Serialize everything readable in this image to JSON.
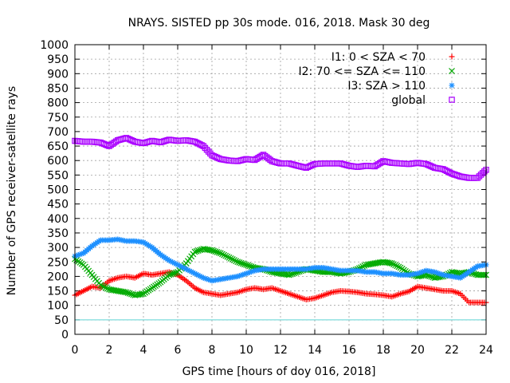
{
  "chart_data": {
    "type": "scatter",
    "title": "NRAYS. SISTED pp 30s mode. 016, 2018. Mask 30 deg",
    "xlabel": "GPS time [hours of doy 016, 2018]",
    "ylabel": "Number of GPS receiver-satellite rays",
    "xlim": [
      0,
      24
    ],
    "ylim": [
      0,
      1000
    ],
    "xticks": [
      0,
      2,
      4,
      6,
      8,
      10,
      12,
      14,
      16,
      18,
      20,
      22,
      24
    ],
    "yticks": [
      0,
      50,
      100,
      150,
      200,
      250,
      300,
      350,
      400,
      450,
      500,
      550,
      600,
      650,
      700,
      750,
      800,
      850,
      900,
      950,
      1000
    ],
    "grid": true,
    "legend_position": "top-right",
    "reference_line": {
      "y": 50,
      "color": "#5fd3d3"
    },
    "series": [
      {
        "name": "I1: 0 < SZA < 70",
        "marker": "plus",
        "color": "#ff0000",
        "x": [
          0,
          0.5,
          1,
          1.5,
          2,
          2.5,
          3,
          3.5,
          4,
          4.5,
          5,
          5.5,
          6,
          6.5,
          7,
          7.5,
          8,
          8.5,
          9,
          9.5,
          10,
          10.5,
          11,
          11.5,
          12,
          12.5,
          13,
          13.5,
          14,
          14.5,
          15,
          15.5,
          16,
          16.5,
          17,
          17.5,
          18,
          18.5,
          19,
          19.5,
          20,
          20.5,
          21,
          21.5,
          22,
          22.5,
          23,
          23.5,
          24
        ],
        "y": [
          135,
          150,
          165,
          160,
          185,
          195,
          200,
          195,
          210,
          205,
          210,
          215,
          205,
          185,
          160,
          145,
          140,
          135,
          140,
          145,
          155,
          160,
          155,
          160,
          150,
          140,
          130,
          120,
          125,
          135,
          145,
          150,
          148,
          145,
          140,
          138,
          135,
          130,
          140,
          148,
          165,
          160,
          155,
          150,
          150,
          140,
          110,
          110,
          110
        ]
      },
      {
        "name": "I2: 70 <= SZA <= 110",
        "marker": "cross",
        "color": "#00aa00",
        "x": [
          0,
          0.5,
          1,
          1.5,
          2,
          2.5,
          3,
          3.5,
          4,
          4.5,
          5,
          5.5,
          6,
          6.5,
          7,
          7.5,
          8,
          8.5,
          9,
          9.5,
          10,
          10.5,
          11,
          11.5,
          12,
          12.5,
          13,
          13.5,
          14,
          14.5,
          15,
          15.5,
          16,
          16.5,
          17,
          17.5,
          18,
          18.5,
          19,
          19.5,
          20,
          20.5,
          21,
          21.5,
          22,
          22.5,
          23,
          23.5,
          24
        ],
        "y": [
          260,
          240,
          205,
          170,
          155,
          150,
          145,
          135,
          140,
          160,
          180,
          205,
          215,
          245,
          285,
          295,
          290,
          280,
          265,
          250,
          240,
          230,
          225,
          215,
          210,
          205,
          215,
          225,
          220,
          215,
          215,
          210,
          215,
          225,
          240,
          245,
          250,
          245,
          230,
          210,
          200,
          205,
          195,
          200,
          215,
          210,
          215,
          205,
          205
        ]
      },
      {
        "name": "I3: SZA > 110",
        "marker": "star",
        "color": "#1e90ff",
        "x": [
          0,
          0.5,
          1,
          1.5,
          2,
          2.5,
          3,
          3.5,
          4,
          4.5,
          5,
          5.5,
          6,
          6.5,
          7,
          7.5,
          8,
          8.5,
          9,
          9.5,
          10,
          10.5,
          11,
          11.5,
          12,
          12.5,
          13,
          13.5,
          14,
          14.5,
          15,
          15.5,
          16,
          16.5,
          17,
          17.5,
          18,
          18.5,
          19,
          19.5,
          20,
          20.5,
          21,
          21.5,
          22,
          22.5,
          23,
          23.5,
          24
        ],
        "y": [
          270,
          280,
          305,
          325,
          325,
          328,
          322,
          322,
          318,
          300,
          275,
          255,
          240,
          225,
          210,
          195,
          185,
          190,
          195,
          200,
          210,
          220,
          225,
          225,
          225,
          225,
          225,
          225,
          230,
          230,
          225,
          220,
          220,
          220,
          215,
          215,
          210,
          210,
          205,
          205,
          210,
          220,
          215,
          205,
          200,
          195,
          215,
          235,
          240
        ]
      },
      {
        "name": "global",
        "marker": "square",
        "color": "#aa00ff",
        "x": [
          0,
          0.5,
          1,
          1.5,
          2,
          2.5,
          3,
          3.5,
          4,
          4.5,
          5,
          5.5,
          6,
          6.5,
          7,
          7.5,
          8,
          8.5,
          9,
          9.5,
          10,
          10.5,
          11,
          11.5,
          12,
          12.5,
          13,
          13.5,
          14,
          14.5,
          15,
          15.5,
          16,
          16.5,
          17,
          17.5,
          18,
          18.5,
          19,
          19.5,
          20,
          20.5,
          21,
          21.5,
          22,
          22.5,
          23,
          23.5,
          24
        ],
        "y": [
          668,
          665,
          665,
          662,
          650,
          670,
          678,
          665,
          660,
          668,
          663,
          672,
          668,
          670,
          665,
          650,
          618,
          605,
          600,
          598,
          605,
          602,
          620,
          598,
          590,
          590,
          582,
          575,
          588,
          590,
          590,
          590,
          582,
          578,
          582,
          580,
          598,
          592,
          590,
          588,
          592,
          588,
          575,
          570,
          555,
          545,
          540,
          540,
          568
        ]
      }
    ]
  }
}
